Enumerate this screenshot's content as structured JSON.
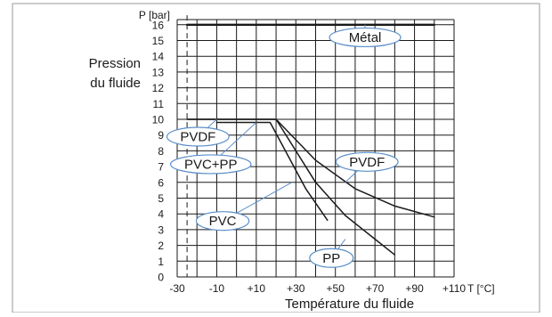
{
  "chart_data": {
    "type": "line",
    "x_unit": "T [°C]",
    "y_unit": "P [bar]",
    "ylabel_lines": [
      "Pression",
      "du fluide"
    ],
    "xlabel": "Température du fluide",
    "x_ticks": [
      "-30",
      "-10",
      "+10",
      "+30",
      "+50",
      "+70",
      "+90",
      "+110"
    ],
    "y_ticks": [
      "0",
      "1",
      "2",
      "3",
      "4",
      "5",
      "6",
      "7",
      "8",
      "9",
      "10",
      "11",
      "12",
      "13",
      "14",
      "15",
      "16"
    ],
    "xlim": [
      -30,
      110
    ],
    "ylim": [
      0,
      16.8
    ],
    "grid": true,
    "reference_line_x": -25,
    "series": [
      {
        "name": "Métal",
        "points": [
          [
            -25,
            16
          ],
          [
            100,
            16
          ]
        ],
        "width": 2.4
      },
      {
        "name": "PVDF",
        "points": [
          [
            -25,
            10
          ],
          [
            20,
            10
          ],
          [
            40,
            7.4
          ],
          [
            60,
            5.6
          ],
          [
            80,
            4.5
          ],
          [
            100,
            3.8
          ]
        ],
        "width": 1.5
      },
      {
        "name": "PVC+PP",
        "points": [
          [
            -25,
            10
          ],
          [
            20,
            10
          ],
          [
            40,
            6
          ],
          [
            55,
            3.9
          ],
          [
            70,
            2.4
          ],
          [
            80,
            1.4
          ]
        ],
        "width": 1.5
      },
      {
        "name": "PVC",
        "points": [
          [
            -10,
            9.8
          ],
          [
            17,
            9.8
          ],
          [
            35,
            5.6
          ],
          [
            46,
            3.6
          ]
        ],
        "width": 1.5
      }
    ],
    "callouts": [
      {
        "label": "Métal",
        "center": [
          65,
          15.2
        ],
        "anchor": [
          65,
          16
        ]
      },
      {
        "label": "PVDF",
        "center": [
          -19.5,
          8.9
        ],
        "anchor": [
          -10,
          10
        ]
      },
      {
        "label": "PVC+PP",
        "center": [
          -13,
          7.15
        ],
        "anchor": [
          10,
          9.8
        ]
      },
      {
        "label": "PVDF",
        "center": [
          66,
          7.3
        ],
        "anchor": [
          55,
          6
        ]
      },
      {
        "label": "PVC",
        "center": [
          -7,
          3.55
        ],
        "anchor": [
          28,
          6
        ]
      },
      {
        "label": "PP",
        "center": [
          48,
          1.2
        ],
        "anchor": [
          55,
          2.4
        ]
      }
    ],
    "colors": {
      "line": "#1a1a1a",
      "grid": "#1a1a1a",
      "callout_stroke": "#5b8fc9",
      "callout_fill": "#ffffff",
      "frame": "#999999"
    }
  }
}
